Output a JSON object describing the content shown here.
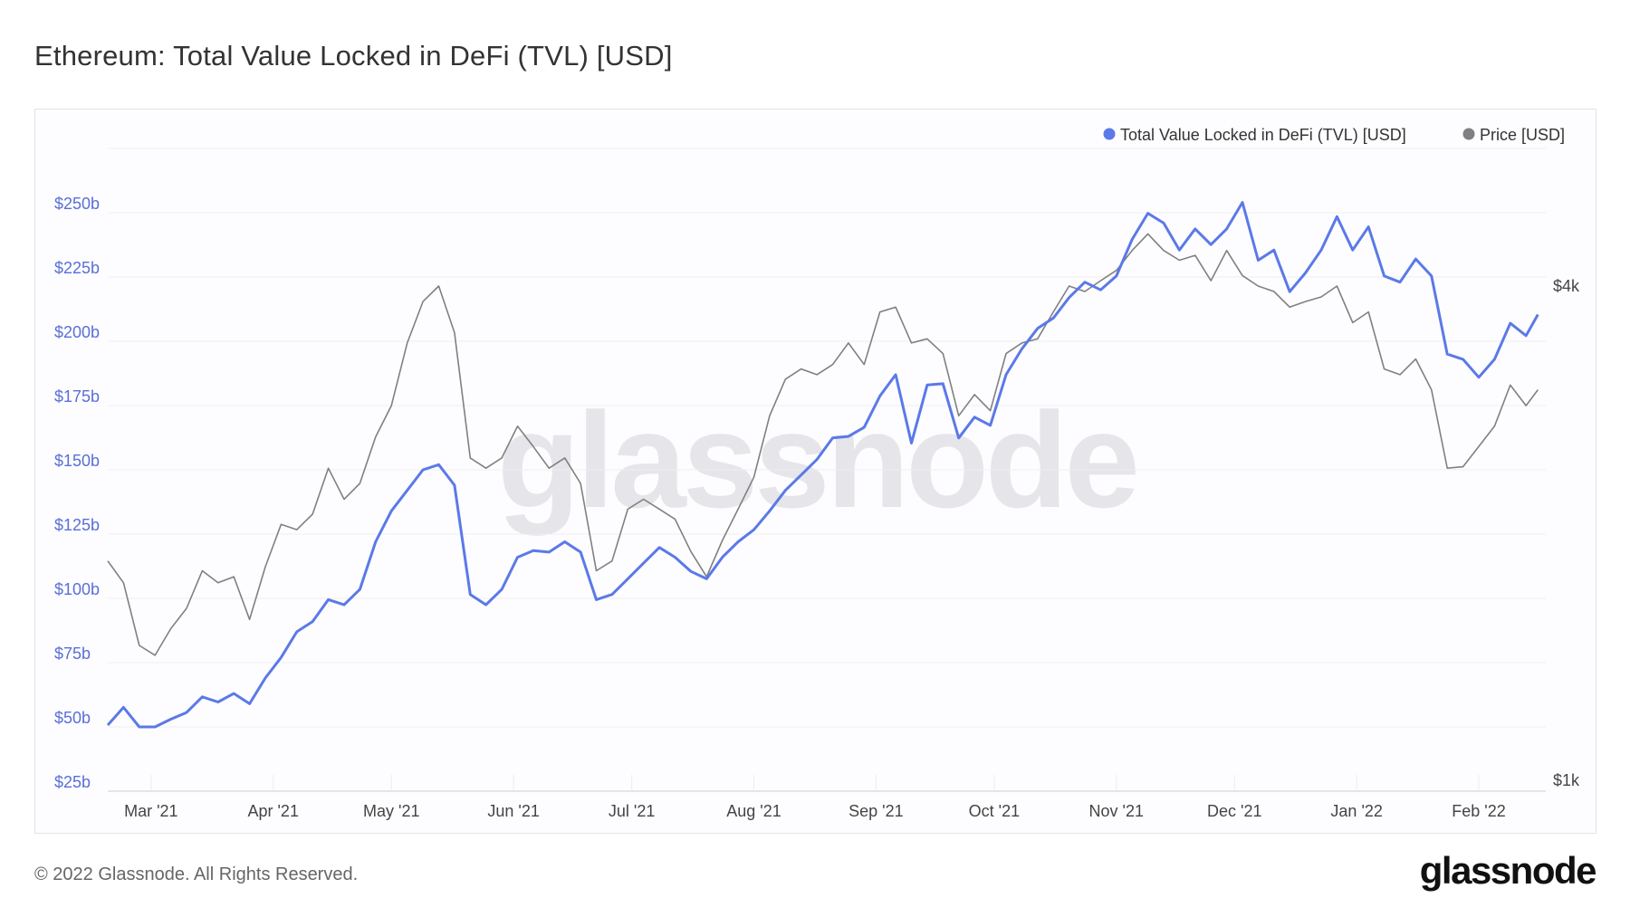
{
  "title": "Ethereum: Total Value Locked in DeFi (TVL) [USD]",
  "footer": {
    "copyright": "© 2022 Glassnode. All Rights Reserved.",
    "logo": "glassnode"
  },
  "watermark": "glassnode",
  "chart_data": {
    "type": "line",
    "title": "Ethereum: Total Value Locked in DeFi (TVL) [USD]",
    "legend_position": "top-right",
    "grid": true,
    "xlim": [
      "2021-02-18",
      "2022-02-18"
    ],
    "x_ticks": [
      {
        "date": "2021-03-01",
        "label": "Mar '21"
      },
      {
        "date": "2021-04-01",
        "label": "Apr '21"
      },
      {
        "date": "2021-05-01",
        "label": "May '21"
      },
      {
        "date": "2021-06-01",
        "label": "Jun '21"
      },
      {
        "date": "2021-07-01",
        "label": "Jul '21"
      },
      {
        "date": "2021-08-01",
        "label": "Aug '21"
      },
      {
        "date": "2021-09-01",
        "label": "Sep '21"
      },
      {
        "date": "2021-10-01",
        "label": "Oct '21"
      },
      {
        "date": "2021-11-01",
        "label": "Nov '21"
      },
      {
        "date": "2021-12-01",
        "label": "Dec '21"
      },
      {
        "date": "2022-01-01",
        "label": "Jan '22"
      },
      {
        "date": "2022-02-01",
        "label": "Feb '22"
      }
    ],
    "y_left": {
      "unit": "billion USD",
      "scale": "linear",
      "ylim": [
        25,
        275
      ],
      "ticks": [
        {
          "value": 250,
          "label": "$250b"
        },
        {
          "value": 225,
          "label": "$225b"
        },
        {
          "value": 200,
          "label": "$200b"
        },
        {
          "value": 175,
          "label": "$175b"
        },
        {
          "value": 150,
          "label": "$150b"
        },
        {
          "value": 125,
          "label": "$125b"
        },
        {
          "value": 100,
          "label": "$100b"
        },
        {
          "value": 75,
          "label": "$75b"
        },
        {
          "value": 50,
          "label": "$50b"
        },
        {
          "value": 25,
          "label": "$25b"
        }
      ],
      "color": "#5a6fd6"
    },
    "y_right": {
      "unit": "thousand USD",
      "scale": "log",
      "ticks": [
        {
          "value": 4,
          "label": "$4k"
        },
        {
          "value": 1,
          "label": "$1k"
        }
      ]
    },
    "series": [
      {
        "name": "Total Value Locked in DeFi (TVL) [USD]",
        "axis": "left",
        "color": "#5b79e8",
        "key": "tvl"
      },
      {
        "name": "Price [USD]",
        "axis": "right",
        "color": "#808080",
        "key": "price"
      }
    ],
    "rows": [
      [
        "2021-02-18",
        50.7,
        1.85
      ],
      [
        "2021-02-22",
        57.6,
        1.74
      ],
      [
        "2021-02-26",
        50,
        1.46
      ],
      [
        "2021-03-02",
        50,
        1.42
      ],
      [
        "2021-03-06",
        53,
        1.53
      ],
      [
        "2021-03-10",
        55.6,
        1.62
      ],
      [
        "2021-03-14",
        61.7,
        1.8
      ],
      [
        "2021-03-18",
        59.7,
        1.74
      ],
      [
        "2021-03-22",
        63,
        1.77
      ],
      [
        "2021-03-26",
        59,
        1.57
      ],
      [
        "2021-03-30",
        69,
        1.82
      ],
      [
        "2021-04-03",
        77,
        2.05
      ],
      [
        "2021-04-07",
        87,
        2.02
      ],
      [
        "2021-04-11",
        91,
        2.11
      ],
      [
        "2021-04-15",
        99.5,
        2.4
      ],
      [
        "2021-04-19",
        97.5,
        2.2
      ],
      [
        "2021-04-23",
        103.5,
        2.3
      ],
      [
        "2021-04-27",
        122,
        2.62
      ],
      [
        "2021-05-01",
        134,
        2.86
      ],
      [
        "2021-05-05",
        142,
        3.41
      ],
      [
        "2021-05-09",
        150,
        3.83
      ],
      [
        "2021-05-13",
        152,
        4.0
      ],
      [
        "2021-05-17",
        144,
        3.51
      ],
      [
        "2021-05-21",
        101.5,
        2.47
      ],
      [
        "2021-05-25",
        97.5,
        2.4
      ],
      [
        "2021-05-29",
        103.5,
        2.47
      ],
      [
        "2021-06-02",
        116,
        2.7
      ],
      [
        "2021-06-06",
        118.6,
        2.55
      ],
      [
        "2021-06-10",
        118,
        2.4
      ],
      [
        "2021-06-14",
        122,
        2.47
      ],
      [
        "2021-06-18",
        118,
        2.3
      ],
      [
        "2021-06-22",
        99.5,
        1.8
      ],
      [
        "2021-06-26",
        101.5,
        1.85
      ],
      [
        "2021-06-30",
        107.6,
        2.14
      ],
      [
        "2021-07-04",
        113.7,
        2.2
      ],
      [
        "2021-07-08",
        119.8,
        2.14
      ],
      [
        "2021-07-12",
        116,
        2.08
      ],
      [
        "2021-07-16",
        110.5,
        1.9
      ],
      [
        "2021-07-20",
        107.6,
        1.77
      ],
      [
        "2021-07-24",
        116,
        1.96
      ],
      [
        "2021-07-28",
        122,
        2.14
      ],
      [
        "2021-08-01",
        126.7,
        2.34
      ],
      [
        "2021-08-05",
        134,
        2.78
      ],
      [
        "2021-08-09",
        142,
        3.08
      ],
      [
        "2021-08-13",
        148,
        3.17
      ],
      [
        "2021-08-17",
        154,
        3.12
      ],
      [
        "2021-08-21",
        162.4,
        3.21
      ],
      [
        "2021-08-25",
        163,
        3.41
      ],
      [
        "2021-08-29",
        166.5,
        3.21
      ],
      [
        "2021-09-02",
        178.7,
        3.72
      ],
      [
        "2021-09-06",
        187,
        3.77
      ],
      [
        "2021-09-10",
        160.4,
        3.41
      ],
      [
        "2021-09-14",
        183,
        3.45
      ],
      [
        "2021-09-18",
        183.5,
        3.31
      ],
      [
        "2021-09-22",
        162.4,
        2.78
      ],
      [
        "2021-09-26",
        170.5,
        2.95
      ],
      [
        "2021-09-30",
        167.3,
        2.82
      ],
      [
        "2021-10-04",
        187,
        3.31
      ],
      [
        "2021-10-08",
        197,
        3.41
      ],
      [
        "2021-10-12",
        205,
        3.45
      ],
      [
        "2021-10-16",
        209,
        3.72
      ],
      [
        "2021-10-20",
        217,
        4.0
      ],
      [
        "2021-10-24",
        223,
        3.94
      ],
      [
        "2021-10-28",
        220,
        4.06
      ],
      [
        "2021-11-01",
        225.4,
        4.18
      ],
      [
        "2021-11-05",
        239.6,
        4.42
      ],
      [
        "2021-11-09",
        249.8,
        4.63
      ],
      [
        "2021-11-13",
        246,
        4.42
      ],
      [
        "2021-11-17",
        235.5,
        4.3
      ],
      [
        "2021-11-21",
        243.7,
        4.36
      ],
      [
        "2021-11-25",
        237.6,
        4.06
      ],
      [
        "2021-11-29",
        243.7,
        4.42
      ],
      [
        "2021-12-03",
        254,
        4.12
      ],
      [
        "2021-12-07",
        231.5,
        4.0
      ],
      [
        "2021-12-11",
        235.5,
        3.94
      ],
      [
        "2021-12-15",
        219.3,
        3.77
      ],
      [
        "2021-12-19",
        226.6,
        3.83
      ],
      [
        "2021-12-23",
        235.5,
        3.88
      ],
      [
        "2021-12-27",
        248.5,
        4.0
      ],
      [
        "2021-12-31",
        235.5,
        3.61
      ],
      [
        "2022-01-04",
        244.5,
        3.72
      ],
      [
        "2022-01-08",
        225.4,
        3.17
      ],
      [
        "2022-01-12",
        223,
        3.12
      ],
      [
        "2022-01-16",
        232,
        3.26
      ],
      [
        "2022-01-20",
        225.4,
        2.99
      ],
      [
        "2022-01-24",
        195,
        2.4
      ],
      [
        "2022-01-28",
        193,
        2.41
      ],
      [
        "2022-02-01",
        186,
        2.55
      ],
      [
        "2022-02-05",
        193,
        2.7
      ],
      [
        "2022-02-09",
        207,
        3.03
      ],
      [
        "2022-02-13",
        202.2,
        2.86
      ],
      [
        "2022-02-16",
        210.4,
        2.99
      ]
    ]
  }
}
